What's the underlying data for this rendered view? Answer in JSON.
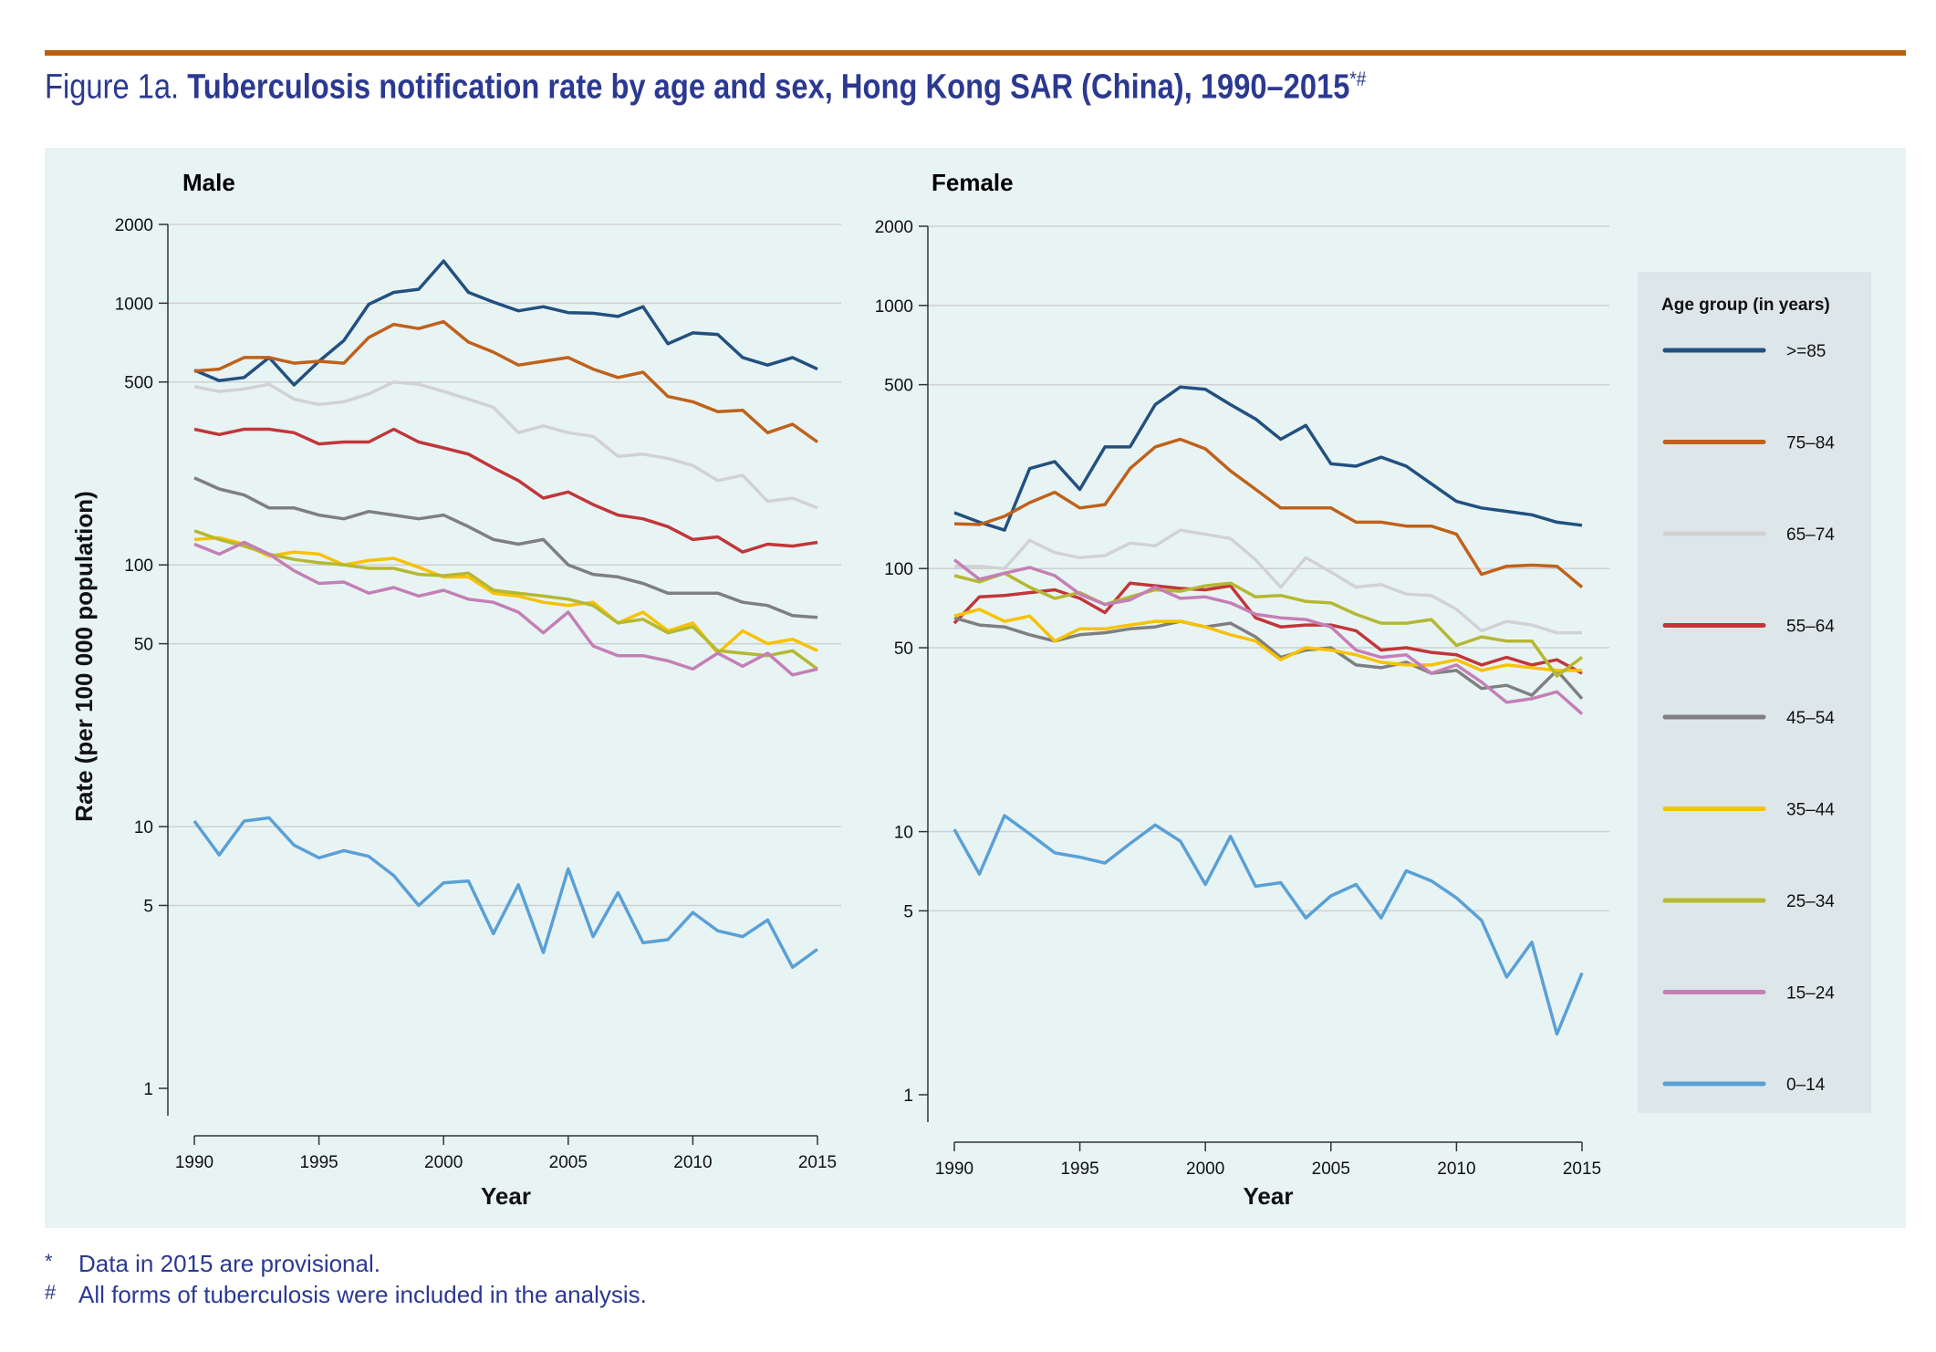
{
  "figure_label": "Figure 1a.",
  "title": "Tuberculosis notification rate by age and sex, Hong Kong SAR (China), 1990–2015",
  "title_marks": "*#",
  "footnotes": [
    {
      "mark": "*",
      "text": "Data in 2015 are provisional."
    },
    {
      "mark": "#",
      "text": "All forms of tuberculosis were included in the analysis."
    }
  ],
  "chart_data": [
    {
      "type": "line",
      "title": "Male",
      "xlabel": "Year",
      "ylabel": "Rate (per 100 000 population)",
      "yscale": "log",
      "ylim": [
        1,
        2000
      ],
      "yticks": [
        1,
        5,
        10,
        50,
        100,
        500,
        1000,
        2000
      ],
      "xticks": [
        1990,
        1995,
        2000,
        2005,
        2010,
        2015
      ],
      "x": [
        1990,
        1991,
        1992,
        1993,
        1994,
        1995,
        1996,
        1997,
        1998,
        1999,
        2000,
        2001,
        2002,
        2003,
        2004,
        2005,
        2006,
        2007,
        2008,
        2009,
        2010,
        2011,
        2012,
        2013,
        2014,
        2015
      ],
      "series": [
        {
          "name": ">=85",
          "values": [
            555,
            506,
            520,
            620,
            487,
            600,
            720,
            990,
            1100,
            1130,
            1450,
            1100,
            1010,
            935,
            970,
            920,
            915,
            890,
            970,
            700,
            770,
            760,
            620,
            580,
            620,
            560
          ]
        },
        {
          "name": "75–84",
          "values": [
            550,
            560,
            620,
            620,
            590,
            600,
            590,
            740,
            830,
            800,
            850,
            710,
            650,
            580,
            600,
            620,
            560,
            520,
            545,
            440,
            420,
            385,
            390,
            320,
            345,
            295
          ]
        },
        {
          "name": "65–74",
          "values": [
            480,
            460,
            470,
            490,
            430,
            410,
            420,
            450,
            500,
            490,
            460,
            430,
            400,
            320,
            340,
            320,
            310,
            260,
            265,
            255,
            240,
            210,
            220,
            175,
            180,
            165
          ]
        },
        {
          "name": "55–64",
          "values": [
            330,
            315,
            330,
            330,
            320,
            290,
            295,
            295,
            330,
            295,
            280,
            265,
            235,
            210,
            180,
            190,
            170,
            155,
            150,
            140,
            125,
            128,
            112,
            120,
            118,
            122
          ]
        },
        {
          "name": "45–54",
          "values": [
            215,
            195,
            185,
            165,
            165,
            155,
            150,
            160,
            155,
            150,
            155,
            140,
            125,
            120,
            125,
            100,
            92,
            90,
            85,
            78,
            78,
            78,
            72,
            70,
            64,
            63
          ]
        },
        {
          "name": "35–44",
          "values": [
            125,
            127,
            120,
            108,
            112,
            110,
            100,
            104,
            106,
            98,
            90,
            90,
            78,
            76,
            72,
            70,
            72,
            60,
            66,
            56,
            60,
            46,
            56,
            50,
            52,
            47
          ]
        },
        {
          "name": "25–34",
          "values": [
            135,
            125,
            118,
            110,
            105,
            102,
            100,
            97,
            97,
            92,
            91,
            93,
            80,
            78,
            76,
            74,
            70,
            60,
            62,
            55,
            58,
            47,
            46,
            45,
            47,
            40
          ]
        },
        {
          "name": "15–24",
          "values": [
            120,
            110,
            122,
            110,
            95,
            85,
            86,
            78,
            82,
            76,
            80,
            74,
            72,
            66,
            55,
            66,
            49,
            45,
            45,
            43,
            40,
            46,
            41,
            46,
            38,
            40
          ]
        },
        {
          "name": "0–14",
          "values": [
            10.5,
            7.8,
            10.5,
            10.8,
            8.5,
            7.6,
            8.1,
            7.7,
            6.5,
            5.0,
            6.1,
            6.2,
            3.9,
            6.0,
            3.3,
            6.9,
            3.8,
            5.6,
            3.6,
            3.7,
            4.7,
            4.0,
            3.8,
            4.4,
            2.9,
            3.4
          ]
        }
      ]
    },
    {
      "type": "line",
      "title": "Female",
      "xlabel": "Year",
      "ylabel": "",
      "yscale": "log",
      "ylim": [
        1,
        2000
      ],
      "yticks": [
        1,
        5,
        10,
        50,
        100,
        500,
        1000,
        2000
      ],
      "xticks": [
        1990,
        1995,
        2000,
        2005,
        2010,
        2015
      ],
      "x": [
        1990,
        1991,
        1992,
        1993,
        1994,
        1995,
        1996,
        1997,
        1998,
        1999,
        2000,
        2001,
        2002,
        2003,
        2004,
        2005,
        2006,
        2007,
        2008,
        2009,
        2010,
        2011,
        2012,
        2013,
        2014,
        2015
      ],
      "series": [
        {
          "name": ">=85",
          "values": [
            163,
            150,
            140,
            240,
            255,
            200,
            290,
            290,
            420,
            490,
            480,
            420,
            370,
            310,
            350,
            250,
            245,
            265,
            245,
            210,
            180,
            170,
            165,
            160,
            150,
            146
          ]
        },
        {
          "name": "75–84",
          "values": [
            148,
            147,
            158,
            178,
            195,
            170,
            175,
            240,
            290,
            310,
            285,
            235,
            200,
            170,
            170,
            170,
            150,
            150,
            145,
            145,
            135,
            95,
            102,
            103,
            102,
            85
          ]
        },
        {
          "name": "65–74",
          "values": [
            102,
            102,
            100,
            128,
            115,
            110,
            112,
            125,
            122,
            140,
            135,
            130,
            108,
            85,
            110,
            97,
            85,
            87,
            80,
            79,
            70,
            58,
            63,
            61,
            57,
            57
          ]
        },
        {
          "name": "55–64",
          "values": [
            62,
            78,
            79,
            81,
            83,
            77,
            68,
            88,
            86,
            84,
            83,
            86,
            65,
            60,
            61,
            61,
            58,
            49,
            50,
            48,
            47,
            43,
            46,
            43,
            45,
            40
          ]
        },
        {
          "name": "45–54",
          "values": [
            65,
            61,
            60,
            56,
            53,
            56,
            57,
            59,
            60,
            63,
            60,
            62,
            55,
            46,
            49,
            50,
            43,
            42,
            44,
            40,
            41,
            35,
            36,
            33,
            41,
            32
          ]
        },
        {
          "name": "35–44",
          "values": [
            66,
            70,
            63,
            66,
            53,
            59,
            59,
            61,
            63,
            63,
            60,
            56,
            53,
            45,
            50,
            49,
            47,
            44,
            43,
            43,
            45,
            41,
            43,
            42,
            41,
            41
          ]
        },
        {
          "name": "25–34",
          "values": [
            94,
            89,
            96,
            85,
            77,
            81,
            73,
            78,
            83,
            82,
            86,
            88,
            78,
            79,
            75,
            74,
            67,
            62,
            62,
            64,
            51,
            55,
            53,
            53,
            39,
            46
          ]
        },
        {
          "name": "15–24",
          "values": [
            108,
            91,
            96,
            101,
            94,
            80,
            73,
            76,
            85,
            77,
            78,
            74,
            67,
            65,
            64,
            60,
            49,
            46,
            47,
            40,
            43,
            37,
            31,
            32,
            34,
            28
          ]
        },
        {
          "name": "0–14",
          "values": [
            10.2,
            6.9,
            11.5,
            9.8,
            8.3,
            8.0,
            7.6,
            9.0,
            10.6,
            9.2,
            6.3,
            9.6,
            6.2,
            6.4,
            4.7,
            5.7,
            6.3,
            4.7,
            7.1,
            6.5,
            5.6,
            4.6,
            2.8,
            3.8,
            1.7,
            2.9
          ]
        }
      ]
    }
  ],
  "legend": {
    "title": "Age group (in years)",
    "placement": "right",
    "items": [
      {
        "label": ">=85",
        "color": "#22507f"
      },
      {
        "label": "75–84",
        "color": "#c0611b"
      },
      {
        "label": "65–74",
        "color": "#d2d2d2"
      },
      {
        "label": "55–64",
        "color": "#c1363a"
      },
      {
        "label": "45–54",
        "color": "#7f7f7f"
      },
      {
        "label": "35–44",
        "color": "#f7c200"
      },
      {
        "label": "25–34",
        "color": "#b5b832"
      },
      {
        "label": "15–24",
        "color": "#c47fb6"
      },
      {
        "label": "0–14",
        "color": "#5aa0d6"
      }
    ]
  }
}
